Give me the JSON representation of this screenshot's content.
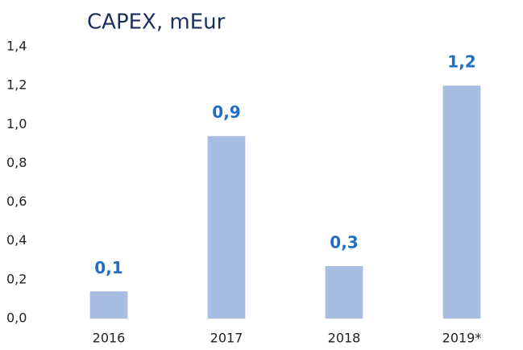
{
  "chart_data": {
    "type": "bar",
    "title": "CAPEX, mEur",
    "categories": [
      "2016",
      "2017",
      "2018",
      "2019*"
    ],
    "values": [
      0.14,
      0.94,
      0.27,
      1.2
    ],
    "value_labels": [
      "0,1",
      "0,9",
      "0,3",
      "1,2"
    ],
    "color": "#a9bce2",
    "ylim": [
      0,
      1.4
    ],
    "yticks": [
      {
        "value": 0,
        "label": "0,0"
      },
      {
        "value": 0.2,
        "label": "0,2"
      },
      {
        "value": 0.4,
        "label": "0,4"
      },
      {
        "value": 0.6,
        "label": "0,6"
      },
      {
        "value": 0.8,
        "label": "0,8"
      },
      {
        "value": 1.0,
        "label": "1,0"
      },
      {
        "value": 1.2,
        "label": "1,2"
      },
      {
        "value": 1.4,
        "label": "1,4"
      }
    ],
    "grid": false
  }
}
